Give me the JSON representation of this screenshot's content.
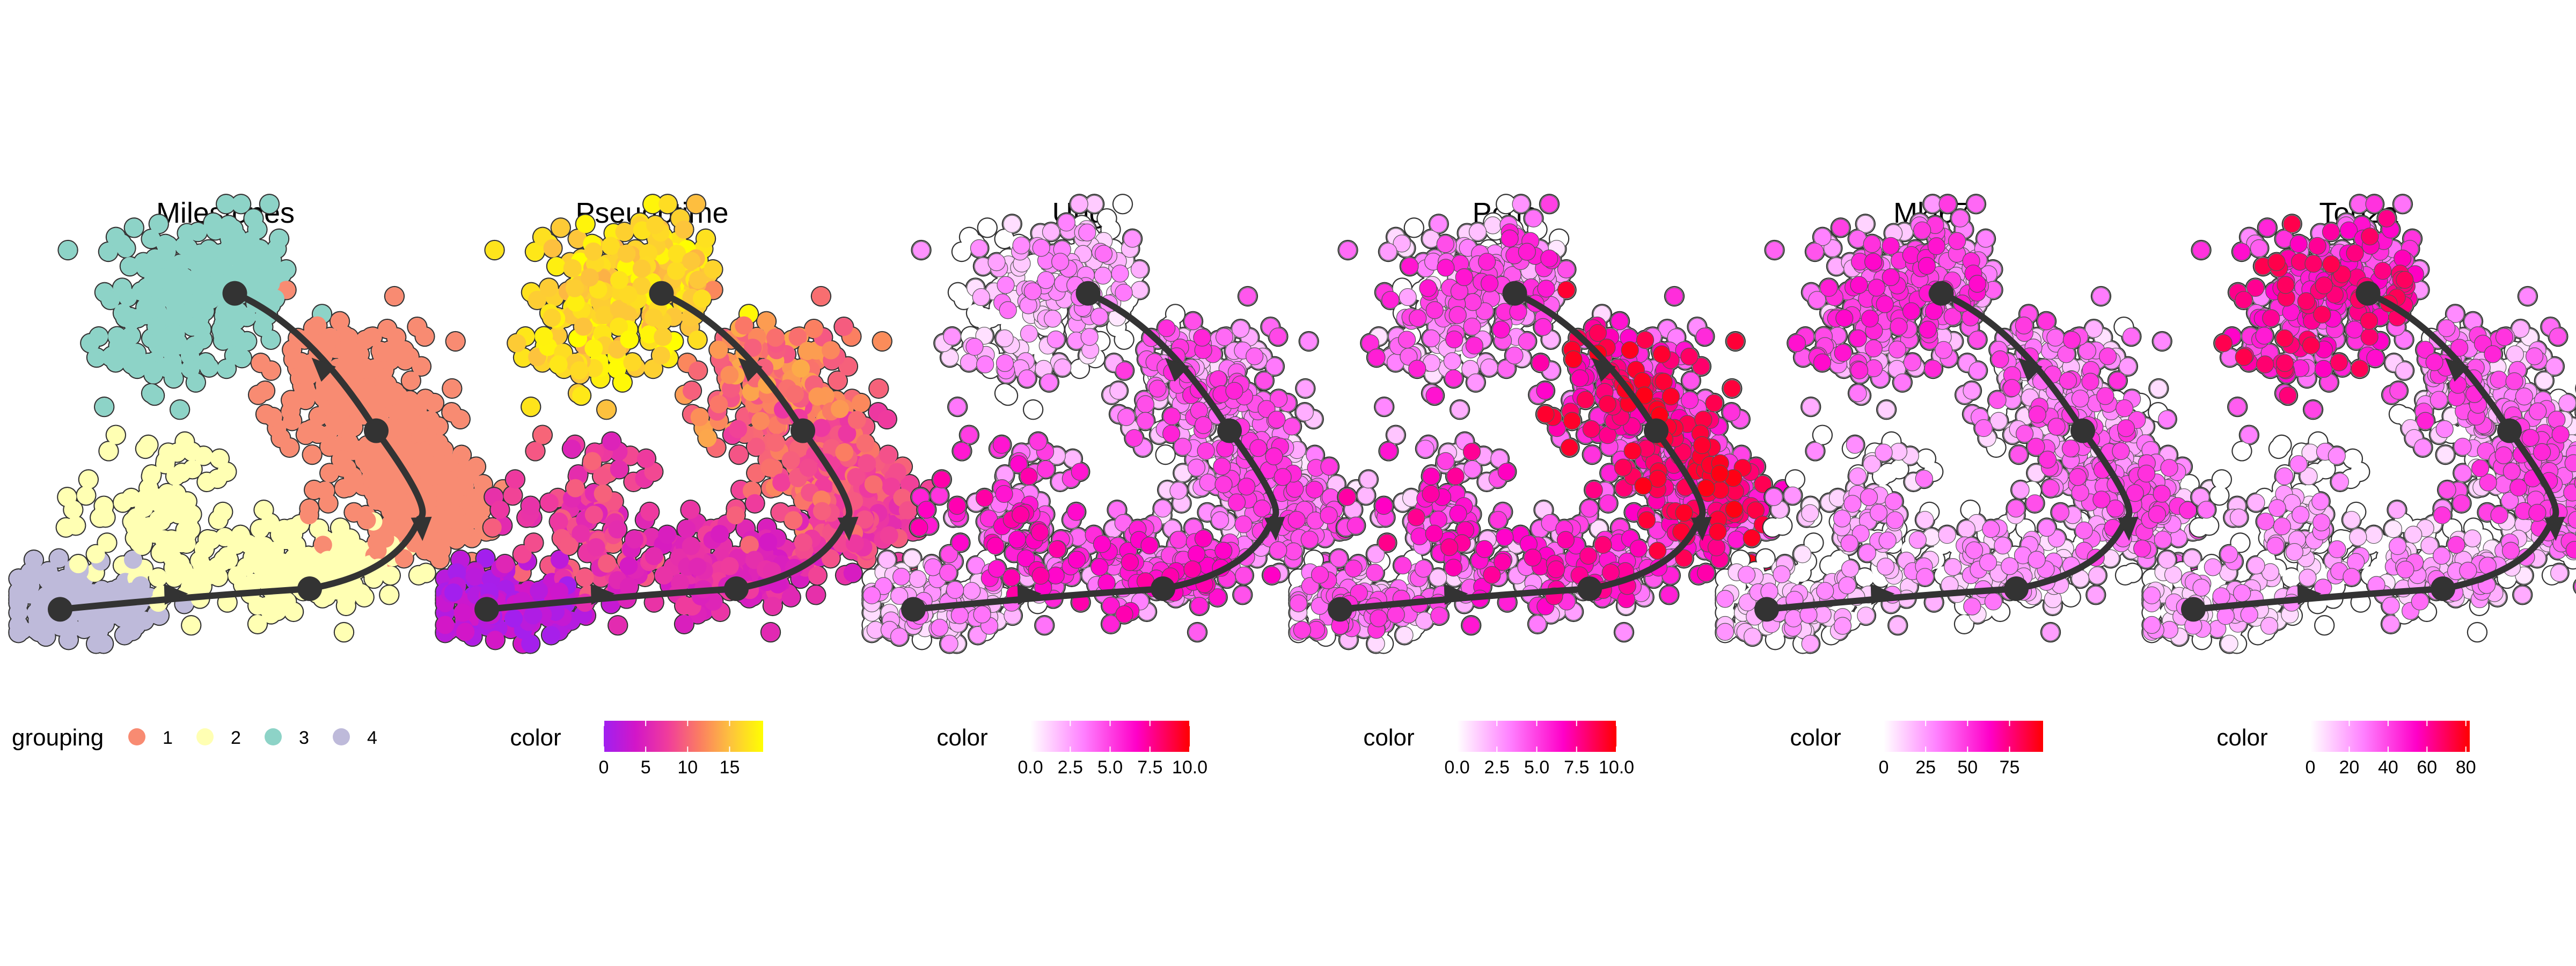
{
  "palette": {
    "milestones": {
      "1": "#f88b72",
      "2": "#ffffb3",
      "3": "#8dd3c7",
      "4": "#bebada"
    },
    "pseudotime": [
      "#a020f0",
      "#d216c8",
      "#f03c9c",
      "#fb7d62",
      "#fdc43c",
      "#ffff00"
    ],
    "expression": [
      "#ffffff",
      "#ff80ff",
      "#ff00c8",
      "#ff0000"
    ],
    "trajectory": "#333333",
    "outline": "#333333"
  },
  "panels": [
    {
      "id": "milestones",
      "title": "Milestones",
      "legend": {
        "kind": "discrete",
        "label": "grouping",
        "items": [
          "1",
          "2",
          "3",
          "4"
        ]
      }
    },
    {
      "id": "pseudotime",
      "title": "Pseudotime",
      "legend": {
        "kind": "gradient",
        "label": "color",
        "ticks": [
          "0",
          "5",
          "10",
          "15"
        ],
        "min": 0,
        "max": 19
      }
    },
    {
      "id": "ung",
      "title": "Ung",
      "legend": {
        "kind": "gradient",
        "label": "color",
        "ticks": [
          "0.0",
          "2.5",
          "5.0",
          "7.5",
          "10.0"
        ],
        "min": 0,
        "max": 10
      }
    },
    {
      "id": "pcna",
      "title": "Pcna",
      "legend": {
        "kind": "gradient",
        "label": "color",
        "ticks": [
          "0.0",
          "2.5",
          "5.0",
          "7.5",
          "10.0"
        ],
        "min": 0,
        "max": 10
      }
    },
    {
      "id": "mki67",
      "title": "Mki67",
      "legend": {
        "kind": "gradient",
        "label": "color",
        "ticks": [
          "0",
          "25",
          "50",
          "75"
        ],
        "min": 0,
        "max": 95
      }
    },
    {
      "id": "top2a",
      "title": "Top2a",
      "legend": {
        "kind": "gradient",
        "label": "color",
        "ticks": [
          "0",
          "20",
          "40",
          "60",
          "80"
        ],
        "min": 0,
        "max": 82
      }
    }
  ],
  "chart_data": {
    "type": "scatter",
    "description_of_axes": "dimensionality-reduction embedding, no axes drawn",
    "trajectory": {
      "milestones": [
        {
          "id": 3,
          "x": 2.5,
          "y": 5.3
        },
        {
          "id": 1,
          "x": 4.2,
          "y": 3.3
        },
        {
          "id": 2,
          "x": 3.4,
          "y": 1.0
        },
        {
          "id": 4,
          "x": 0.4,
          "y": 0.7
        }
      ],
      "edges": [
        [
          "3",
          "1"
        ],
        [
          "1",
          "2"
        ],
        [
          "4",
          "2"
        ]
      ]
    },
    "groups": [
      {
        "milestone": "3",
        "pseudotime_range": [
          14,
          19
        ],
        "gene_level": {
          "ung": 0.05,
          "pcna": 0.2,
          "mki67": 0.35,
          "top2a": 0.55
        }
      },
      {
        "milestone": "1",
        "pseudotime_range": [
          8,
          14
        ],
        "gene_level": {
          "ung": 0.25,
          "pcna": 0.55,
          "mki67": 0.25,
          "top2a": 0.25
        }
      },
      {
        "milestone": "2",
        "pseudotime_range": [
          4,
          8
        ],
        "gene_level": {
          "ung": 0.4,
          "pcna": 0.35,
          "mki67": 0.08,
          "top2a": 0.08
        }
      },
      {
        "milestone": "4",
        "pseudotime_range": [
          0,
          4
        ],
        "gene_level": {
          "ung": 0.05,
          "pcna": 0.15,
          "mki67": 0.02,
          "top2a": 0.02
        }
      }
    ]
  }
}
